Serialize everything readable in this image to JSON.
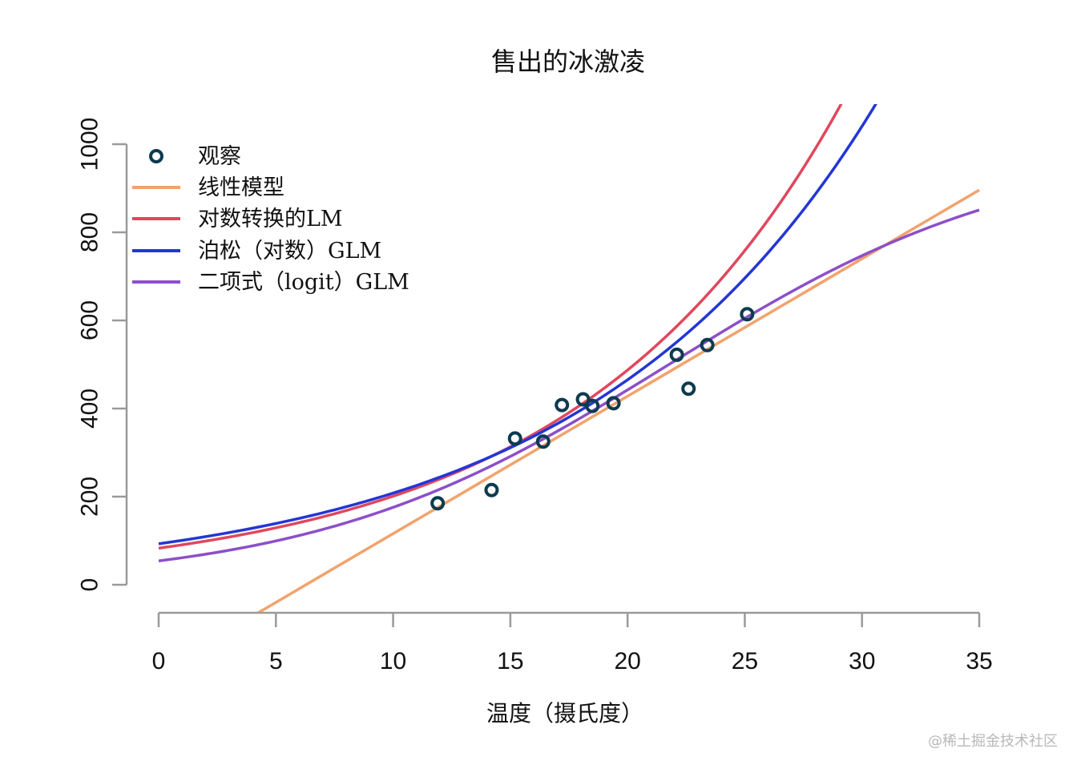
{
  "chart_data": {
    "type": "scatter",
    "title": "售出的冰激凌",
    "xlabel": "温度（摄氏度）",
    "ylabel": "",
    "xlim": [
      0,
      35
    ],
    "ylim": [
      -60,
      1000
    ],
    "xticks": [
      "0",
      "5",
      "10",
      "15",
      "20",
      "25",
      "30",
      "35"
    ],
    "yticks": [
      "0",
      "200",
      "400",
      "600",
      "800",
      "1000"
    ],
    "legend_position": "top-left",
    "observed": {
      "name": "观察",
      "color": "#0d3b4f",
      "x": [
        11.9,
        14.2,
        15.2,
        16.4,
        17.2,
        18.1,
        18.5,
        19.4,
        22.1,
        22.6,
        23.4,
        25.1
      ],
      "y": [
        185,
        215,
        332,
        325,
        408,
        421,
        406,
        412,
        522,
        445,
        544,
        614
      ]
    },
    "series": [
      {
        "name": "线性模型",
        "color": "#f2a36c",
        "model": "linear",
        "params": {
          "intercept": -196,
          "slope": 31.2
        }
      },
      {
        "name": "对数转换的LM",
        "color": "#e0475e",
        "model": "exp",
        "params": {
          "a": 83,
          "b": 0.0885
        }
      },
      {
        "name": "泊松（对数）GLM",
        "color": "#2336d6",
        "model": "exp",
        "params": {
          "a": 93,
          "b": 0.0805
        }
      },
      {
        "name": "二项式（logit）GLM",
        "color": "#8c4fc9",
        "model": "logistic",
        "params": {
          "K": 1000,
          "b0": -2.86,
          "b1": 0.1314
        }
      }
    ]
  },
  "watermark": "@稀土掘金技术社区"
}
